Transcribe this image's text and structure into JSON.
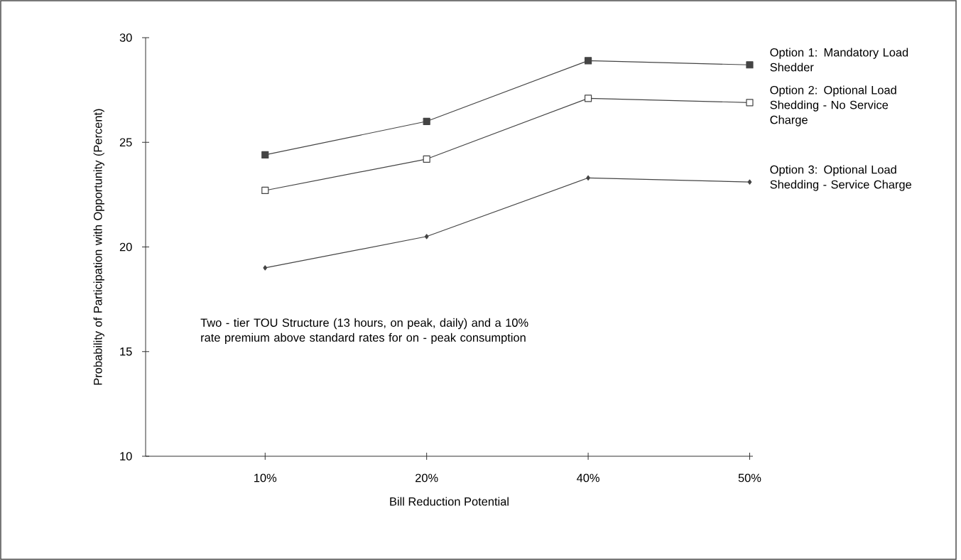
{
  "chart_data": {
    "type": "line",
    "xlabel": "Bill Reduction Potential",
    "ylabel": "Probability of Participation with Opportunity (Percent)",
    "categories": [
      "10%",
      "20%",
      "40%",
      "50%"
    ],
    "ylim": [
      10,
      30
    ],
    "yticks": [
      10,
      15,
      20,
      25,
      30
    ],
    "grid": false,
    "series": [
      {
        "name": "Option 1: Mandatory Load Shedder",
        "color": "#444444",
        "marker": "square",
        "values": [
          24.4,
          26.0,
          28.9,
          28.7
        ]
      },
      {
        "name": "Option 2: Optional Load Shedding - No Service Charge",
        "color": "#444444",
        "marker": "square",
        "values": [
          22.7,
          24.2,
          27.1,
          26.9
        ]
      },
      {
        "name": "Option 3: Optional Load Shedding - Service Charge",
        "color": "#444444",
        "marker": "diamond",
        "values": [
          19.0,
          20.5,
          23.3,
          23.1
        ]
      }
    ],
    "annotations": [
      "Two - tier TOU Structure (13 hours, on peak, daily) and a 10% rate premium above standard rates for on - peak consumption"
    ]
  }
}
